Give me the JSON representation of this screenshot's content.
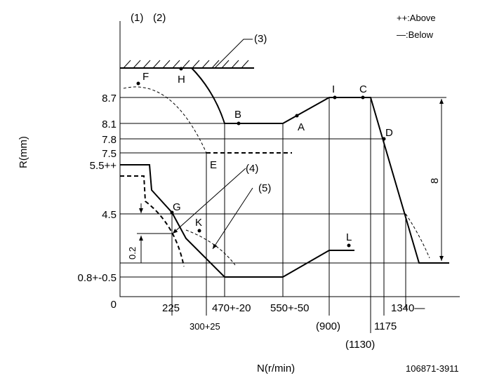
{
  "header": {
    "mark_1": "(1)",
    "mark_2": "(2)"
  },
  "legend": {
    "above": "++:Above",
    "below": "—:Below"
  },
  "callouts": {
    "c3": "(3)",
    "c4": "(4)",
    "c5": "(5)",
    "span": "8",
    "step": "0.2"
  },
  "points": {
    "F": "F",
    "H": "H",
    "I": "I",
    "C": "C",
    "B": "B",
    "A": "A",
    "D": "D",
    "E": "E",
    "G": "G",
    "K": "K",
    "L": "L"
  },
  "y_axis": {
    "title": "R(mm)",
    "labels": [
      "8.7",
      "8.1",
      "7.8",
      "7.5",
      "5.5++",
      "4.5",
      "0.8+-0.5",
      "0"
    ]
  },
  "x_axis": {
    "title": "N(r/min)",
    "labels": [
      "225",
      "300+25",
      "470+-20",
      "550+-50",
      "(900)",
      "(1130)",
      "1175",
      "1340—"
    ]
  },
  "footer": {
    "code": "106871-3911"
  }
}
